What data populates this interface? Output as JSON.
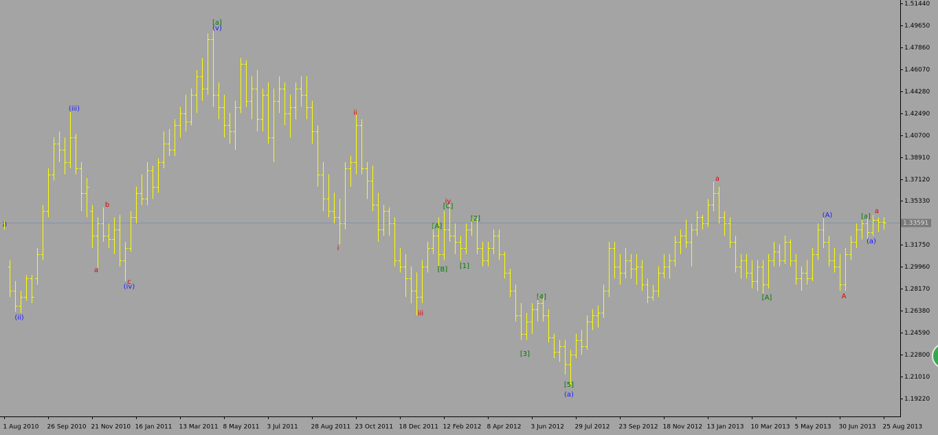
{
  "chart_data": {
    "type": "ohlc",
    "ylim": [
      1.1776,
      1.5172
    ],
    "yticks": [
      {
        "value": 1.5144,
        "label": "1.51440"
      },
      {
        "value": 1.4965,
        "label": "1.49650"
      },
      {
        "value": 1.4786,
        "label": "1.47860"
      },
      {
        "value": 1.4607,
        "label": "1.46070"
      },
      {
        "value": 1.4428,
        "label": "1.44280"
      },
      {
        "value": 1.4249,
        "label": "1.42490"
      },
      {
        "value": 1.407,
        "label": "1.40700"
      },
      {
        "value": 1.3891,
        "label": "1.38910"
      },
      {
        "value": 1.3712,
        "label": "1.37120"
      },
      {
        "value": 1.3533,
        "label": "1.35330"
      },
      {
        "value": 1.3175,
        "label": "1.31750"
      },
      {
        "value": 1.2996,
        "label": "1.29960"
      },
      {
        "value": 1.2817,
        "label": "1.28170"
      },
      {
        "value": 1.2638,
        "label": "1.26380"
      },
      {
        "value": 1.2459,
        "label": "1.24590"
      },
      {
        "value": 1.228,
        "label": "1.22800"
      },
      {
        "value": 1.2101,
        "label": "1.21010"
      },
      {
        "value": 1.1922,
        "label": "1.19220"
      }
    ],
    "color": "#ffff00",
    "price_line_color": "#7f93ad",
    "categories": [
      "1 Aug 2010",
      null,
      null,
      null,
      null,
      null,
      null,
      null,
      "26 Sep 2010",
      null,
      null,
      null,
      null,
      null,
      null,
      null,
      "21 Nov 2010",
      null,
      null,
      null,
      null,
      null,
      null,
      null,
      "16 Jan 2011",
      null,
      null,
      null,
      null,
      null,
      null,
      null,
      "13 Mar 2011",
      null,
      null,
      null,
      null,
      null,
      null,
      null,
      "8 May 2011",
      null,
      null,
      null,
      null,
      null,
      null,
      null,
      "3 Jul 2011",
      null,
      null,
      null,
      null,
      null,
      null,
      null,
      "28 Aug 2011",
      null,
      null,
      null,
      null,
      null,
      null,
      null,
      "23 Oct 2011",
      null,
      null,
      null,
      null,
      null,
      null,
      null,
      "18 Dec 2011",
      null,
      null,
      null,
      null,
      null,
      null,
      null,
      "12 Feb 2012",
      null,
      null,
      null,
      null,
      null,
      null,
      null,
      "8 Apr 2012",
      null,
      null,
      null,
      null,
      null,
      null,
      null,
      "3 Jun 2012",
      null,
      null,
      null,
      null,
      null,
      null,
      null,
      "29 Jul 2012",
      null,
      null,
      null,
      null,
      null,
      null,
      null,
      "23 Sep 2012",
      null,
      null,
      null,
      null,
      null,
      null,
      null,
      "18 Nov 2012",
      null,
      null,
      null,
      null,
      null,
      null,
      null,
      "13 Jan 2013",
      null,
      null,
      null,
      null,
      null,
      null,
      null,
      "10 Mar 2013",
      null,
      null,
      null,
      null,
      null,
      null,
      null,
      "5 May 2013",
      null,
      null,
      null,
      null,
      null,
      null,
      null,
      "30 Jun 2013",
      null,
      null,
      null,
      null,
      null,
      null,
      null,
      "25 Aug 2013"
    ],
    "open": [
      1.335,
      1.3,
      1.28,
      1.268,
      1.275,
      1.29,
      1.29,
      1.31,
      1.345,
      1.375,
      1.4,
      1.395,
      1.385,
      1.405,
      1.38,
      1.36,
      1.345,
      1.325,
      1.335,
      1.325,
      1.322,
      1.33,
      1.305,
      1.315,
      1.34,
      1.36,
      1.355,
      1.378,
      1.365,
      1.385,
      1.4,
      1.395,
      1.415,
      1.425,
      1.418,
      1.44,
      1.455,
      1.445,
      1.485,
      1.44,
      1.43,
      1.415,
      1.41,
      1.43,
      1.465,
      1.435,
      1.445,
      1.42,
      1.44,
      1.405,
      1.435,
      1.445,
      1.425,
      1.43,
      1.445,
      1.44,
      1.43,
      1.41,
      1.375,
      1.355,
      1.345,
      1.34,
      1.335,
      1.38,
      1.385,
      1.415,
      1.38,
      1.37,
      1.35,
      1.33,
      1.345,
      1.335,
      1.305,
      1.3,
      1.29,
      1.28,
      1.275,
      1.3,
      1.315,
      1.325,
      1.31,
      1.33,
      1.325,
      1.32,
      1.315,
      1.33,
      1.338,
      1.315,
      1.305,
      1.315,
      1.325,
      1.31,
      1.295,
      1.28,
      1.26,
      1.245,
      1.255,
      1.265,
      1.27,
      1.26,
      1.242,
      1.23,
      1.235,
      1.22,
      1.228,
      1.24,
      1.235,
      1.255,
      1.26,
      1.262,
      1.28,
      1.315,
      1.3,
      1.295,
      1.305,
      1.298,
      1.3,
      1.285,
      1.275,
      1.28,
      1.295,
      1.3,
      1.305,
      1.32,
      1.325,
      1.32,
      1.33,
      1.34,
      1.335,
      1.35,
      1.36,
      1.34,
      1.335,
      1.32,
      1.3,
      1.305,
      1.295,
      1.288,
      1.3,
      1.285,
      1.305,
      1.312,
      1.305,
      1.32,
      1.305,
      1.29,
      1.295,
      1.29,
      1.31,
      1.33,
      1.32,
      1.305,
      1.3,
      1.285,
      1.31,
      1.32,
      1.33,
      1.335,
      1.328,
      1.338,
      1.336
    ],
    "high": [
      1.337,
      1.305,
      1.288,
      1.28,
      1.293,
      1.293,
      1.315,
      1.35,
      1.38,
      1.405,
      1.41,
      1.405,
      1.426,
      1.408,
      1.385,
      1.372,
      1.35,
      1.34,
      1.348,
      1.335,
      1.34,
      1.342,
      1.32,
      1.345,
      1.365,
      1.375,
      1.385,
      1.382,
      1.388,
      1.41,
      1.412,
      1.42,
      1.43,
      1.44,
      1.445,
      1.46,
      1.47,
      1.49,
      1.494,
      1.45,
      1.44,
      1.425,
      1.435,
      1.47,
      1.468,
      1.455,
      1.46,
      1.445,
      1.45,
      1.445,
      1.455,
      1.45,
      1.44,
      1.45,
      1.455,
      1.455,
      1.435,
      1.415,
      1.385,
      1.375,
      1.36,
      1.355,
      1.385,
      1.39,
      1.427,
      1.42,
      1.385,
      1.382,
      1.36,
      1.35,
      1.348,
      1.34,
      1.315,
      1.31,
      1.3,
      1.295,
      1.305,
      1.32,
      1.335,
      1.34,
      1.345,
      1.352,
      1.335,
      1.325,
      1.335,
      1.34,
      1.34,
      1.32,
      1.32,
      1.33,
      1.33,
      1.312,
      1.298,
      1.285,
      1.27,
      1.262,
      1.27,
      1.275,
      1.275,
      1.265,
      1.245,
      1.24,
      1.24,
      1.232,
      1.245,
      1.248,
      1.26,
      1.265,
      1.268,
      1.285,
      1.32,
      1.32,
      1.31,
      1.315,
      1.31,
      1.31,
      1.305,
      1.29,
      1.285,
      1.3,
      1.31,
      1.31,
      1.325,
      1.33,
      1.338,
      1.335,
      1.345,
      1.342,
      1.355,
      1.369,
      1.365,
      1.345,
      1.34,
      1.325,
      1.31,
      1.31,
      1.305,
      1.305,
      1.305,
      1.31,
      1.32,
      1.318,
      1.325,
      1.322,
      1.31,
      1.3,
      1.305,
      1.315,
      1.335,
      1.34,
      1.325,
      1.315,
      1.31,
      1.315,
      1.325,
      1.335,
      1.338,
      1.34,
      1.342,
      1.34,
      1.34
    ],
    "low": [
      1.33,
      1.275,
      1.263,
      1.262,
      1.272,
      1.27,
      1.285,
      1.305,
      1.34,
      1.37,
      1.385,
      1.375,
      1.38,
      1.375,
      1.345,
      1.34,
      1.315,
      1.299,
      1.32,
      1.315,
      1.31,
      1.3,
      1.288,
      1.312,
      1.335,
      1.35,
      1.35,
      1.355,
      1.36,
      1.38,
      1.39,
      1.39,
      1.405,
      1.41,
      1.415,
      1.425,
      1.435,
      1.44,
      1.43,
      1.42,
      1.405,
      1.4,
      1.395,
      1.425,
      1.43,
      1.42,
      1.41,
      1.41,
      1.4,
      1.385,
      1.425,
      1.415,
      1.405,
      1.42,
      1.43,
      1.42,
      1.4,
      1.365,
      1.345,
      1.34,
      1.335,
      1.318,
      1.33,
      1.365,
      1.375,
      1.375,
      1.355,
      1.345,
      1.32,
      1.325,
      1.325,
      1.3,
      1.295,
      1.275,
      1.27,
      1.26,
      1.27,
      1.295,
      1.31,
      1.3,
      1.305,
      1.32,
      1.31,
      1.305,
      1.31,
      1.325,
      1.31,
      1.3,
      1.3,
      1.31,
      1.305,
      1.29,
      1.275,
      1.255,
      1.24,
      1.24,
      1.245,
      1.255,
      1.255,
      1.238,
      1.225,
      1.222,
      1.212,
      1.203,
      1.225,
      1.228,
      1.232,
      1.248,
      1.25,
      1.258,
      1.275,
      1.29,
      1.285,
      1.29,
      1.29,
      1.285,
      1.28,
      1.27,
      1.272,
      1.275,
      1.29,
      1.29,
      1.3,
      1.31,
      1.315,
      1.3,
      1.325,
      1.33,
      1.332,
      1.345,
      1.335,
      1.325,
      1.315,
      1.295,
      1.29,
      1.29,
      1.282,
      1.28,
      1.278,
      1.282,
      1.3,
      1.3,
      1.302,
      1.3,
      1.285,
      1.28,
      1.285,
      1.288,
      1.305,
      1.315,
      1.3,
      1.295,
      1.28,
      1.28,
      1.305,
      1.315,
      1.322,
      1.322,
      1.325,
      1.328,
      1.33
    ],
    "close": [
      1.332,
      1.28,
      1.268,
      1.275,
      1.29,
      1.275,
      1.31,
      1.345,
      1.375,
      1.4,
      1.395,
      1.385,
      1.405,
      1.38,
      1.36,
      1.365,
      1.325,
      1.335,
      1.325,
      1.322,
      1.33,
      1.305,
      1.315,
      1.34,
      1.36,
      1.355,
      1.378,
      1.365,
      1.385,
      1.4,
      1.395,
      1.415,
      1.425,
      1.418,
      1.44,
      1.455,
      1.445,
      1.485,
      1.44,
      1.43,
      1.415,
      1.41,
      1.43,
      1.465,
      1.435,
      1.445,
      1.42,
      1.44,
      1.405,
      1.435,
      1.445,
      1.425,
      1.43,
      1.445,
      1.44,
      1.43,
      1.41,
      1.375,
      1.355,
      1.345,
      1.34,
      1.335,
      1.38,
      1.385,
      1.415,
      1.38,
      1.37,
      1.35,
      1.33,
      1.345,
      1.335,
      1.305,
      1.3,
      1.29,
      1.28,
      1.275,
      1.3,
      1.315,
      1.325,
      1.31,
      1.33,
      1.325,
      1.32,
      1.315,
      1.33,
      1.338,
      1.315,
      1.305,
      1.315,
      1.325,
      1.31,
      1.295,
      1.28,
      1.26,
      1.245,
      1.255,
      1.265,
      1.27,
      1.26,
      1.242,
      1.23,
      1.235,
      1.22,
      1.228,
      1.24,
      1.235,
      1.255,
      1.26,
      1.262,
      1.28,
      1.315,
      1.3,
      1.295,
      1.305,
      1.298,
      1.3,
      1.285,
      1.275,
      1.28,
      1.295,
      1.3,
      1.305,
      1.32,
      1.325,
      1.32,
      1.33,
      1.34,
      1.335,
      1.35,
      1.36,
      1.34,
      1.335,
      1.32,
      1.3,
      1.305,
      1.295,
      1.288,
      1.3,
      1.285,
      1.305,
      1.312,
      1.305,
      1.32,
      1.305,
      1.29,
      1.295,
      1.29,
      1.31,
      1.33,
      1.32,
      1.305,
      1.3,
      1.285,
      1.31,
      1.32,
      1.33,
      1.335,
      1.328,
      1.338,
      1.336,
      1.33591
    ],
    "annotations": [
      {
        "text": "i)",
        "color": "#1a1aff"
      },
      {
        "text": "(ii)",
        "color": "#1a1aff"
      },
      {
        "text": "(iii)",
        "color": "#1a1aff"
      },
      {
        "text": "a",
        "color": "#e00000"
      },
      {
        "text": "b",
        "color": "#e00000"
      },
      {
        "text": "c",
        "color": "#e00000"
      },
      {
        "text": "(iv)",
        "color": "#1a1aff"
      },
      {
        "text": "[a]",
        "color": "#007a00"
      },
      {
        "text": "(v)",
        "color": "#1a1aff"
      },
      {
        "text": "i",
        "color": "#e00000"
      },
      {
        "text": "ii",
        "color": "#e00000"
      },
      {
        "text": "iii",
        "color": "#e00000"
      },
      {
        "text": "iv",
        "color": "#e00000"
      },
      {
        "text": "[C]",
        "color": "#007a00"
      },
      {
        "text": "[A]",
        "color": "#007a00"
      },
      {
        "text": "[B]",
        "color": "#007a00"
      },
      {
        "text": "[1]",
        "color": "#007a00"
      },
      {
        "text": "[2]",
        "color": "#007a00"
      },
      {
        "text": "[3]",
        "color": "#007a00"
      },
      {
        "text": "[4]",
        "color": "#007a00"
      },
      {
        "text": "[5]",
        "color": "#007a00"
      },
      {
        "text": "(a)",
        "color": "#1a1aff"
      },
      {
        "text": "a",
        "color": "#e00000"
      },
      {
        "text": "[A]",
        "color": "#007a00"
      },
      {
        "text": "(A)",
        "color": "#1a1aff"
      },
      {
        "text": "A",
        "color": "#e00000"
      },
      {
        "text": "[a]",
        "color": "#007a00"
      },
      {
        "text": "a",
        "color": "#e00000"
      },
      {
        "text": "(a)",
        "color": "#1a1aff"
      }
    ]
  }
}
